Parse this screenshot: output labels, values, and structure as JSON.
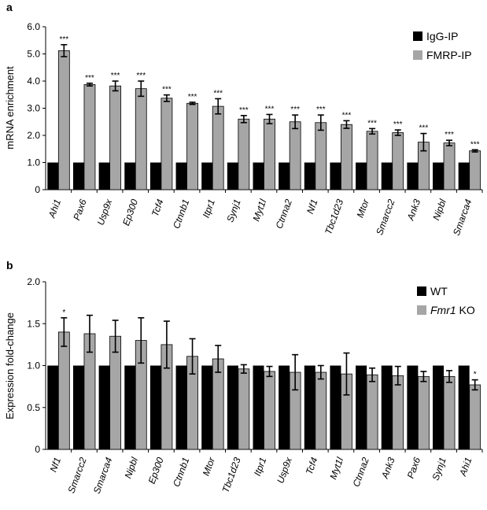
{
  "chart_data": [
    {
      "type": "bar",
      "panel_label": "a",
      "ylabel": "mRNA enrichment",
      "ylim": [
        0,
        6
      ],
      "yticks": [
        "0",
        "1.0",
        "2.0",
        "3.0",
        "4.0",
        "5.0",
        "6.0"
      ],
      "categories": [
        "Ahi1",
        "Pax6",
        "Usp9x",
        "Ep300",
        "Tcf4",
        "Ctnnb1",
        "Itpr1",
        "Synj1",
        "Myt1l",
        "Ctnna2",
        "Nf1",
        "Tbc1d23",
        "Mtor",
        "Smarcc2",
        "Ank3",
        "Nipbl",
        "Smarca4"
      ],
      "legend": {
        "position": "top-right"
      },
      "series": [
        {
          "name": "IgG-IP",
          "color": "#000000",
          "values": [
            1,
            1,
            1,
            1,
            1,
            1,
            1,
            1,
            1,
            1,
            1,
            1,
            1,
            1,
            1,
            1,
            1
          ]
        },
        {
          "name": "FMRP-IP",
          "color": "#a6a6a6",
          "values": [
            5.12,
            3.87,
            3.82,
            3.72,
            3.37,
            3.18,
            3.07,
            2.6,
            2.6,
            2.5,
            2.47,
            2.4,
            2.15,
            2.1,
            1.75,
            1.72,
            1.43
          ],
          "errors": [
            0.22,
            0.05,
            0.18,
            0.28,
            0.12,
            0.04,
            0.28,
            0.13,
            0.17,
            0.25,
            0.28,
            0.14,
            0.1,
            0.1,
            0.32,
            0.1,
            0.04
          ],
          "annotations": [
            "***",
            "***",
            "***",
            "***",
            "***",
            "***",
            "***",
            "***",
            "***",
            "***",
            "***",
            "***",
            "***",
            "***",
            "***",
            "***",
            "***"
          ]
        }
      ]
    },
    {
      "type": "bar",
      "panel_label": "b",
      "ylabel": "Expression fold-change",
      "ylim": [
        0,
        2
      ],
      "yticks": [
        "0",
        "0.5",
        "1.0",
        "1.5",
        "2.0"
      ],
      "categories": [
        "Nf1",
        "Smarcc2",
        "Smarca4",
        "Nipbl",
        "Ep300",
        "Ctnnb1",
        "Mtor",
        "Tbc1d23",
        "Itpr1",
        "Usp9x",
        "Tcf4",
        "Myt1l",
        "Ctnna2",
        "Ank3",
        "Pax6",
        "Synj1",
        "Ahi1"
      ],
      "legend": {
        "position": "top-right"
      },
      "series": [
        {
          "name": "WT",
          "color": "#000000",
          "values": [
            1,
            1,
            1,
            1,
            1,
            1,
            1,
            1,
            1,
            1,
            1,
            1,
            1,
            1,
            1,
            1,
            1
          ]
        },
        {
          "name_italic": "Fmr1",
          "name": " KO",
          "color": "#a6a6a6",
          "values": [
            1.4,
            1.38,
            1.35,
            1.3,
            1.25,
            1.11,
            1.08,
            0.96,
            0.93,
            0.92,
            0.92,
            0.9,
            0.89,
            0.88,
            0.87,
            0.87,
            0.77
          ],
          "errors": [
            0.17,
            0.22,
            0.19,
            0.27,
            0.28,
            0.21,
            0.16,
            0.05,
            0.06,
            0.21,
            0.08,
            0.25,
            0.08,
            0.11,
            0.06,
            0.07,
            0.06
          ],
          "annotations": [
            "*",
            "",
            "",
            "",
            "",
            "",
            "",
            "",
            "",
            "",
            "",
            "",
            "",
            "",
            "",
            "",
            "*"
          ]
        }
      ]
    }
  ]
}
